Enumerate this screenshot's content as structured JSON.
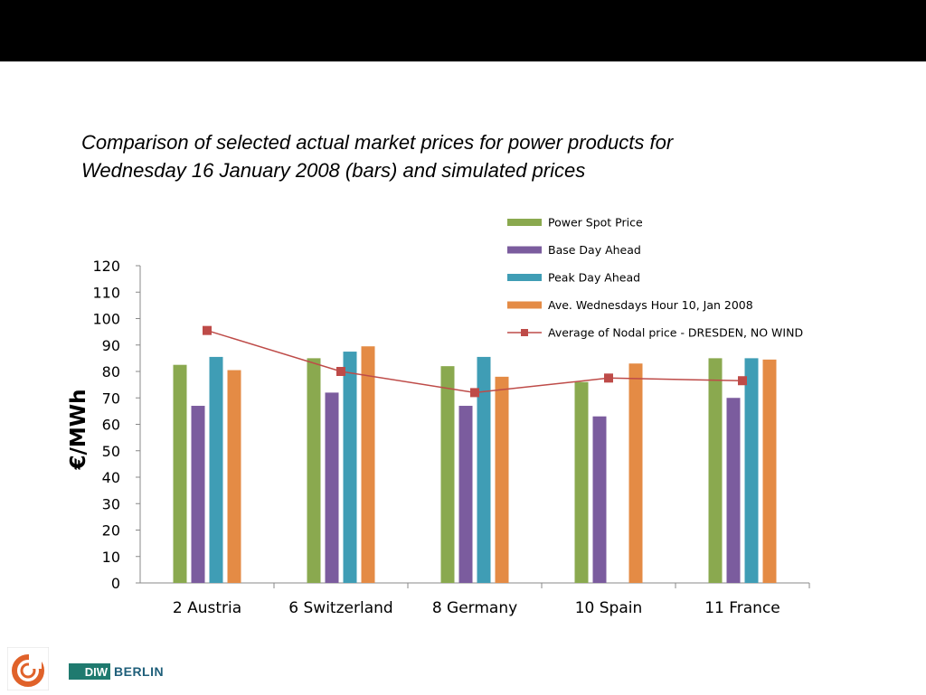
{
  "slide": {
    "title_line1": "Comparison of selected actual market prices for power products for",
    "title_line2": "Wednesday 16 January 2008 (bars) and simulated prices"
  },
  "logos": {
    "left_logo": "ring-logo",
    "diw_mark": "DIW",
    "diw_text": "BERLIN"
  },
  "chart_data": {
    "type": "bar",
    "ylabel": "€/MWh",
    "xlabel": "",
    "ylim": [
      0,
      120
    ],
    "yticks": [
      0,
      10,
      20,
      30,
      40,
      50,
      60,
      70,
      80,
      90,
      100,
      110,
      120
    ],
    "categories": [
      "2 Austria",
      "6 Switzerland",
      "8 Germany",
      "10 Spain",
      "11 France"
    ],
    "series": [
      {
        "name": "Power Spot Price",
        "type": "bar",
        "color": "#8aa94f",
        "values": [
          82.5,
          85,
          82,
          76,
          85
        ]
      },
      {
        "name": "Base Day Ahead",
        "type": "bar",
        "color": "#7b5c9e",
        "values": [
          67,
          72,
          67,
          63,
          70
        ]
      },
      {
        "name": "Peak Day Ahead",
        "type": "bar",
        "color": "#3f9db5",
        "values": [
          85.5,
          87.5,
          85.5,
          null,
          85
        ]
      },
      {
        "name": "Ave. Wednesdays Hour 10, Jan 2008",
        "type": "bar",
        "color": "#e48b45",
        "values": [
          80.5,
          89.5,
          78,
          83,
          84.5
        ]
      },
      {
        "name": "Average of Nodal price - DRESDEN, NO WIND",
        "type": "line",
        "color": "#be4b48",
        "values": [
          95.5,
          80,
          72,
          77.5,
          76.5
        ]
      }
    ],
    "legend_position": "top-right",
    "grid": false
  }
}
